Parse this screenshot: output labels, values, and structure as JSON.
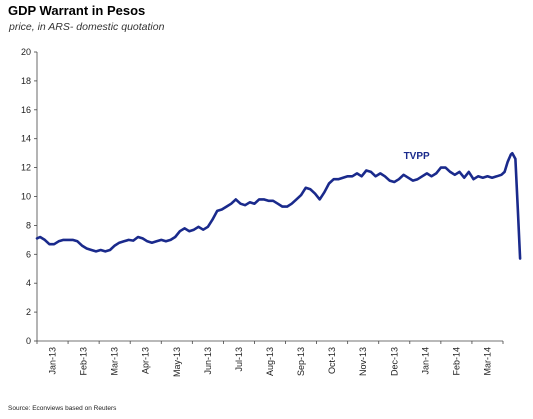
{
  "chart_data": {
    "type": "line",
    "title": "GDP Warrant in Pesos",
    "subtitle": "price, in ARS- domestic quotation",
    "source": "Source: Econviews based on Reuters",
    "ylim": [
      0,
      20
    ],
    "yticks": [
      "0",
      "2",
      "4",
      "6",
      "8",
      "10",
      "12",
      "14",
      "16",
      "18",
      "20"
    ],
    "xticks": [
      "Jan-13",
      "Feb-13",
      "Mar-13",
      "Apr-13",
      "May-13",
      "Jun-13",
      "Jul-13",
      "Aug-13",
      "Sep-13",
      "Oct-13",
      "Nov-13",
      "Dec-13",
      "Jan-14",
      "Feb-14",
      "Mar-14"
    ],
    "grid": false,
    "line_color": "#1a2a8c",
    "series": [
      {
        "name": "TVPP",
        "x": [
          0,
          0.1,
          0.25,
          0.4,
          0.55,
          0.7,
          0.85,
          1.0,
          1.15,
          1.3,
          1.45,
          1.6,
          1.75,
          1.9,
          2.05,
          2.2,
          2.35,
          2.5,
          2.65,
          2.8,
          2.95,
          3.1,
          3.25,
          3.4,
          3.55,
          3.7,
          3.85,
          4.0,
          4.15,
          4.3,
          4.45,
          4.6,
          4.75,
          4.9,
          5.05,
          5.2,
          5.35,
          5.5,
          5.65,
          5.8,
          5.95,
          6.1,
          6.25,
          6.4,
          6.55,
          6.7,
          6.85,
          7.0,
          7.15,
          7.3,
          7.45,
          7.6,
          7.75,
          7.9,
          8.05,
          8.2,
          8.35,
          8.5,
          8.65,
          8.8,
          8.95,
          9.1,
          9.25,
          9.4,
          9.55,
          9.7,
          9.85,
          10.0,
          10.15,
          10.3,
          10.45,
          10.6,
          10.75,
          10.9,
          11.05,
          11.2,
          11.35,
          11.5,
          11.65,
          11.8,
          11.95,
          12.1,
          12.25,
          12.4,
          12.55,
          12.7,
          12.85,
          13.0,
          13.15,
          13.3,
          13.45,
          13.6,
          13.75,
          13.9,
          14.05,
          14.2,
          14.35,
          14.5,
          14.65,
          14.8,
          14.95,
          15.05,
          15.15,
          15.25,
          15.3,
          15.4,
          15.48,
          15.55
        ],
        "values": [
          7.1,
          7.2,
          7.0,
          6.7,
          6.7,
          6.9,
          7.0,
          7.0,
          7.0,
          6.9,
          6.6,
          6.4,
          6.3,
          6.2,
          6.3,
          6.2,
          6.3,
          6.6,
          6.8,
          6.9,
          7.0,
          6.95,
          7.2,
          7.1,
          6.9,
          6.8,
          6.9,
          7.0,
          6.9,
          7.0,
          7.2,
          7.6,
          7.8,
          7.6,
          7.7,
          7.9,
          7.7,
          7.9,
          8.4,
          9.0,
          9.1,
          9.3,
          9.5,
          9.8,
          9.5,
          9.4,
          9.6,
          9.5,
          9.8,
          9.8,
          9.7,
          9.7,
          9.5,
          9.3,
          9.3,
          9.5,
          9.8,
          10.1,
          10.6,
          10.5,
          10.2,
          9.8,
          10.3,
          10.9,
          11.2,
          11.2,
          11.3,
          11.4,
          11.4,
          11.6,
          11.4,
          11.8,
          11.7,
          11.4,
          11.6,
          11.4,
          11.1,
          11.0,
          11.2,
          11.5,
          11.3,
          11.1,
          11.2,
          11.4,
          11.6,
          11.4,
          11.6,
          12.0,
          12.0,
          11.7,
          11.5,
          11.7,
          11.3,
          11.7,
          11.2,
          11.4,
          11.3,
          11.4,
          11.3,
          11.4,
          11.5,
          11.7,
          12.4,
          12.9,
          13.0,
          12.6,
          9.0,
          5.7
        ]
      }
    ],
    "series_label_at": [
      11.8,
      12.6
    ]
  }
}
